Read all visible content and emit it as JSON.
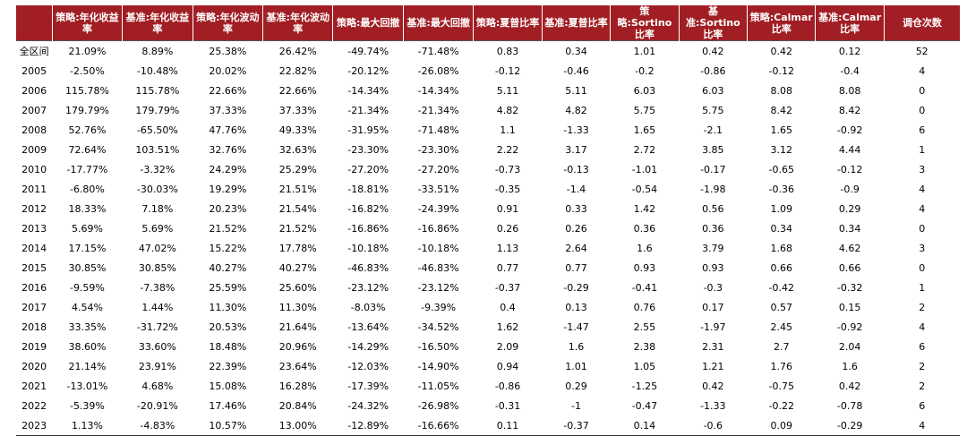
{
  "table": {
    "headers": [
      "",
      "策略:年化收益率",
      "基准:年化收益率",
      "策略:年化波动率",
      "基准:年化波动率",
      "策略:最大回撤",
      "基准:最大回撤",
      "策略:夏普比率",
      "基准:夏普比率",
      "策略:Sortino比率",
      "基准:Sortino比率",
      "策略:Calmar比率",
      "基准:Calmar比率",
      "调仓次数"
    ],
    "rows": [
      [
        "全区间",
        "21.09%",
        "8.89%",
        "25.38%",
        "26.42%",
        "-49.74%",
        "-71.48%",
        "0.83",
        "0.34",
        "1.01",
        "0.42",
        "0.42",
        "0.12",
        "52"
      ],
      [
        "2005",
        "-2.50%",
        "-10.48%",
        "20.02%",
        "22.82%",
        "-20.12%",
        "-26.08%",
        "-0.12",
        "-0.46",
        "-0.2",
        "-0.86",
        "-0.12",
        "-0.4",
        "4"
      ],
      [
        "2006",
        "115.78%",
        "115.78%",
        "22.66%",
        "22.66%",
        "-14.34%",
        "-14.34%",
        "5.11",
        "5.11",
        "6.03",
        "6.03",
        "8.08",
        "8.08",
        "0"
      ],
      [
        "2007",
        "179.79%",
        "179.79%",
        "37.33%",
        "37.33%",
        "-21.34%",
        "-21.34%",
        "4.82",
        "4.82",
        "5.75",
        "5.75",
        "8.42",
        "8.42",
        "0"
      ],
      [
        "2008",
        "52.76%",
        "-65.50%",
        "47.76%",
        "49.33%",
        "-31.95%",
        "-71.48%",
        "1.1",
        "-1.33",
        "1.65",
        "-2.1",
        "1.65",
        "-0.92",
        "6"
      ],
      [
        "2009",
        "72.64%",
        "103.51%",
        "32.76%",
        "32.63%",
        "-23.30%",
        "-23.30%",
        "2.22",
        "3.17",
        "2.72",
        "3.85",
        "3.12",
        "4.44",
        "1"
      ],
      [
        "2010",
        "-17.77%",
        "-3.32%",
        "24.29%",
        "25.29%",
        "-27.20%",
        "-27.20%",
        "-0.73",
        "-0.13",
        "-1.01",
        "-0.17",
        "-0.65",
        "-0.12",
        "3"
      ],
      [
        "2011",
        "-6.80%",
        "-30.03%",
        "19.29%",
        "21.51%",
        "-18.81%",
        "-33.51%",
        "-0.35",
        "-1.4",
        "-0.54",
        "-1.98",
        "-0.36",
        "-0.9",
        "4"
      ],
      [
        "2012",
        "18.33%",
        "7.18%",
        "20.23%",
        "21.54%",
        "-16.82%",
        "-24.39%",
        "0.91",
        "0.33",
        "1.42",
        "0.56",
        "1.09",
        "0.29",
        "4"
      ],
      [
        "2013",
        "5.69%",
        "5.69%",
        "21.52%",
        "21.52%",
        "-16.86%",
        "-16.86%",
        "0.26",
        "0.26",
        "0.36",
        "0.36",
        "0.34",
        "0.34",
        "0"
      ],
      [
        "2014",
        "17.15%",
        "47.02%",
        "15.22%",
        "17.78%",
        "-10.18%",
        "-10.18%",
        "1.13",
        "2.64",
        "1.6",
        "3.79",
        "1.68",
        "4.62",
        "3"
      ],
      [
        "2015",
        "30.85%",
        "30.85%",
        "40.27%",
        "40.27%",
        "-46.83%",
        "-46.83%",
        "0.77",
        "0.77",
        "0.93",
        "0.93",
        "0.66",
        "0.66",
        "0"
      ],
      [
        "2016",
        "-9.59%",
        "-7.38%",
        "25.59%",
        "25.60%",
        "-23.12%",
        "-23.12%",
        "-0.37",
        "-0.29",
        "-0.41",
        "-0.3",
        "-0.42",
        "-0.32",
        "1"
      ],
      [
        "2017",
        "4.54%",
        "1.44%",
        "11.30%",
        "11.30%",
        "-8.03%",
        "-9.39%",
        "0.4",
        "0.13",
        "0.76",
        "0.17",
        "0.57",
        "0.15",
        "2"
      ],
      [
        "2018",
        "33.35%",
        "-31.72%",
        "20.53%",
        "21.64%",
        "-13.64%",
        "-34.52%",
        "1.62",
        "-1.47",
        "2.55",
        "-1.97",
        "2.45",
        "-0.92",
        "4"
      ],
      [
        "2019",
        "38.60%",
        "33.60%",
        "18.48%",
        "20.96%",
        "-14.29%",
        "-16.50%",
        "2.09",
        "1.6",
        "2.38",
        "2.31",
        "2.7",
        "2.04",
        "6"
      ],
      [
        "2020",
        "21.14%",
        "23.91%",
        "22.39%",
        "23.64%",
        "-12.03%",
        "-14.90%",
        "0.94",
        "1.01",
        "1.05",
        "1.21",
        "1.76",
        "1.6",
        "2"
      ],
      [
        "2021",
        "-13.01%",
        "4.68%",
        "15.08%",
        "16.28%",
        "-17.39%",
        "-11.05%",
        "-0.86",
        "0.29",
        "-1.25",
        "0.42",
        "-0.75",
        "0.42",
        "2"
      ],
      [
        "2022",
        "-5.39%",
        "-20.91%",
        "17.46%",
        "20.84%",
        "-24.32%",
        "-26.98%",
        "-0.31",
        "-1",
        "-0.47",
        "-1.33",
        "-0.22",
        "-0.78",
        "6"
      ],
      [
        "2023",
        "1.13%",
        "-4.83%",
        "10.57%",
        "13.00%",
        "-12.89%",
        "-16.66%",
        "0.11",
        "-0.37",
        "0.14",
        "-0.6",
        "0.09",
        "-0.29",
        "4"
      ]
    ]
  },
  "colors": {
    "header_bg": "#a11f24",
    "header_text": "#ffffff"
  }
}
